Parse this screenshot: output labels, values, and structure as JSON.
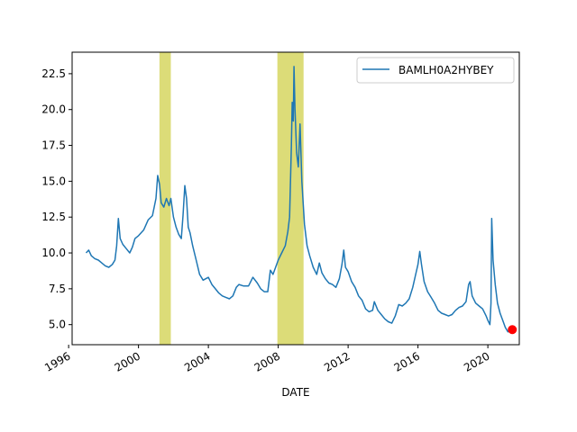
{
  "chart_data": {
    "type": "line",
    "title": "",
    "xlabel": "DATE",
    "ylabel": "",
    "xlim": [
      1996.2,
      2021.8
    ],
    "ylim": [
      3.6,
      24.0
    ],
    "x_ticks": [
      "1996",
      "2000",
      "2004",
      "2008",
      "2012",
      "2016",
      "2020"
    ],
    "y_ticks": [
      "5.0",
      "7.5",
      "10.0",
      "12.5",
      "15.0",
      "17.5",
      "20.0",
      "22.5"
    ],
    "grid": false,
    "legend": {
      "placement": "top-right",
      "entries": [
        "BAMLH0A2HYBEY"
      ]
    },
    "colors": {
      "line": "#1f77b4",
      "shade": "#dcdc78",
      "marker": "#ff0000",
      "axes": "#000000"
    },
    "recession_bands": [
      [
        2001.2,
        2001.85
      ],
      [
        2007.95,
        2009.45
      ]
    ],
    "last_point": {
      "x": 2021.4,
      "y": 4.65
    },
    "series": [
      {
        "name": "BAMLH0A2HYBEY",
        "points": [
          [
            1997.0,
            10.0
          ],
          [
            1997.15,
            10.2
          ],
          [
            1997.3,
            9.8
          ],
          [
            1997.5,
            9.6
          ],
          [
            1997.7,
            9.5
          ],
          [
            1997.9,
            9.3
          ],
          [
            1998.1,
            9.1
          ],
          [
            1998.3,
            9.0
          ],
          [
            1998.5,
            9.2
          ],
          [
            1998.65,
            9.5
          ],
          [
            1998.75,
            10.5
          ],
          [
            1998.85,
            12.4
          ],
          [
            1998.95,
            11.0
          ],
          [
            1999.1,
            10.6
          ],
          [
            1999.3,
            10.3
          ],
          [
            1999.5,
            10.0
          ],
          [
            1999.65,
            10.4
          ],
          [
            1999.8,
            11.0
          ],
          [
            2000.0,
            11.2
          ],
          [
            2000.3,
            11.6
          ],
          [
            2000.55,
            12.3
          ],
          [
            2000.8,
            12.6
          ],
          [
            2001.0,
            13.8
          ],
          [
            2001.1,
            15.4
          ],
          [
            2001.2,
            14.8
          ],
          [
            2001.3,
            13.5
          ],
          [
            2001.45,
            13.2
          ],
          [
            2001.6,
            13.8
          ],
          [
            2001.75,
            13.3
          ],
          [
            2001.85,
            13.8
          ],
          [
            2002.0,
            12.5
          ],
          [
            2002.15,
            11.8
          ],
          [
            2002.3,
            11.3
          ],
          [
            2002.45,
            11.0
          ],
          [
            2002.55,
            12.6
          ],
          [
            2002.65,
            14.7
          ],
          [
            2002.75,
            13.8
          ],
          [
            2002.85,
            11.8
          ],
          [
            2002.95,
            11.4
          ],
          [
            2003.1,
            10.5
          ],
          [
            2003.3,
            9.5
          ],
          [
            2003.5,
            8.5
          ],
          [
            2003.7,
            8.1
          ],
          [
            2003.85,
            8.2
          ],
          [
            2004.0,
            8.3
          ],
          [
            2004.2,
            7.8
          ],
          [
            2004.4,
            7.5
          ],
          [
            2004.6,
            7.2
          ],
          [
            2004.8,
            7.0
          ],
          [
            2005.0,
            6.9
          ],
          [
            2005.2,
            6.8
          ],
          [
            2005.4,
            7.0
          ],
          [
            2005.6,
            7.6
          ],
          [
            2005.75,
            7.8
          ],
          [
            2006.0,
            7.7
          ],
          [
            2006.3,
            7.7
          ],
          [
            2006.55,
            8.3
          ],
          [
            2006.8,
            7.9
          ],
          [
            2007.0,
            7.5
          ],
          [
            2007.2,
            7.3
          ],
          [
            2007.4,
            7.3
          ],
          [
            2007.55,
            8.8
          ],
          [
            2007.7,
            8.5
          ],
          [
            2007.85,
            9.0
          ],
          [
            2008.0,
            9.5
          ],
          [
            2008.2,
            10.0
          ],
          [
            2008.4,
            10.5
          ],
          [
            2008.55,
            11.5
          ],
          [
            2008.65,
            12.5
          ],
          [
            2008.75,
            17.5
          ],
          [
            2008.8,
            20.5
          ],
          [
            2008.86,
            19.2
          ],
          [
            2008.9,
            23.0
          ],
          [
            2008.96,
            20.0
          ],
          [
            2009.05,
            17.0
          ],
          [
            2009.15,
            16.0
          ],
          [
            2009.25,
            19.0
          ],
          [
            2009.35,
            15.0
          ],
          [
            2009.5,
            12.0
          ],
          [
            2009.65,
            10.5
          ],
          [
            2009.8,
            9.8
          ],
          [
            2010.0,
            9.0
          ],
          [
            2010.2,
            8.5
          ],
          [
            2010.35,
            9.3
          ],
          [
            2010.5,
            8.6
          ],
          [
            2010.7,
            8.2
          ],
          [
            2010.9,
            7.9
          ],
          [
            2011.1,
            7.8
          ],
          [
            2011.3,
            7.6
          ],
          [
            2011.5,
            8.2
          ],
          [
            2011.65,
            9.2
          ],
          [
            2011.75,
            10.2
          ],
          [
            2011.85,
            9.0
          ],
          [
            2012.0,
            8.7
          ],
          [
            2012.2,
            8.0
          ],
          [
            2012.4,
            7.6
          ],
          [
            2012.6,
            7.0
          ],
          [
            2012.8,
            6.7
          ],
          [
            2013.0,
            6.1
          ],
          [
            2013.2,
            5.9
          ],
          [
            2013.4,
            6.0
          ],
          [
            2013.5,
            6.6
          ],
          [
            2013.7,
            6.0
          ],
          [
            2013.9,
            5.7
          ],
          [
            2014.1,
            5.4
          ],
          [
            2014.3,
            5.2
          ],
          [
            2014.5,
            5.1
          ],
          [
            2014.7,
            5.6
          ],
          [
            2014.9,
            6.4
          ],
          [
            2015.1,
            6.3
          ],
          [
            2015.3,
            6.5
          ],
          [
            2015.5,
            6.8
          ],
          [
            2015.7,
            7.6
          ],
          [
            2015.85,
            8.4
          ],
          [
            2016.0,
            9.2
          ],
          [
            2016.1,
            10.1
          ],
          [
            2016.2,
            9.2
          ],
          [
            2016.35,
            8.0
          ],
          [
            2016.55,
            7.3
          ],
          [
            2016.75,
            6.9
          ],
          [
            2016.95,
            6.5
          ],
          [
            2017.15,
            6.0
          ],
          [
            2017.35,
            5.8
          ],
          [
            2017.55,
            5.7
          ],
          [
            2017.75,
            5.6
          ],
          [
            2017.95,
            5.7
          ],
          [
            2018.15,
            6.0
          ],
          [
            2018.35,
            6.2
          ],
          [
            2018.55,
            6.3
          ],
          [
            2018.75,
            6.6
          ],
          [
            2018.9,
            7.8
          ],
          [
            2018.98,
            8.0
          ],
          [
            2019.1,
            7.0
          ],
          [
            2019.3,
            6.5
          ],
          [
            2019.5,
            6.3
          ],
          [
            2019.7,
            6.1
          ],
          [
            2019.9,
            5.6
          ],
          [
            2020.0,
            5.3
          ],
          [
            2020.12,
            5.0
          ],
          [
            2020.18,
            6.5
          ],
          [
            2020.22,
            12.4
          ],
          [
            2020.3,
            9.5
          ],
          [
            2020.42,
            7.8
          ],
          [
            2020.55,
            6.5
          ],
          [
            2020.7,
            5.8
          ],
          [
            2020.85,
            5.3
          ],
          [
            2021.0,
            4.8
          ],
          [
            2021.15,
            4.5
          ],
          [
            2021.3,
            4.7
          ],
          [
            2021.4,
            4.65
          ]
        ]
      }
    ]
  }
}
